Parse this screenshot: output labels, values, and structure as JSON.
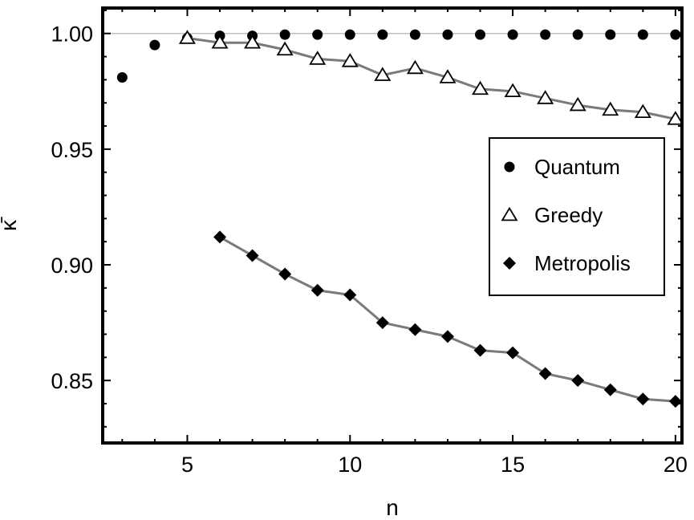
{
  "chart_data": {
    "type": "scatter",
    "xlabel": "n",
    "ylabel": "κ̄",
    "xlim": [
      2.4,
      20.2
    ],
    "ylim": [
      0.823,
      1.011
    ],
    "x_ticks": [
      5,
      10,
      15,
      20
    ],
    "y_ticks": [
      0.85,
      0.9,
      0.95,
      1.0
    ],
    "x_tick_labels": [
      "5",
      "10",
      "15",
      "20"
    ],
    "y_tick_labels": [
      "0.85",
      "0.90",
      "0.95",
      "1.00"
    ],
    "reference_line": 1.0,
    "grid": false,
    "legend_position": "right",
    "series": [
      {
        "name": "Quantum",
        "marker": "circle",
        "connected": false,
        "color": "#000000",
        "x": [
          3,
          4,
          5,
          6,
          7,
          8,
          9,
          10,
          11,
          12,
          13,
          14,
          15,
          16,
          17,
          18,
          19,
          20
        ],
        "y": [
          0.981,
          0.995,
          0.998,
          0.999,
          0.999,
          0.9995,
          0.9995,
          0.9995,
          0.9995,
          0.9995,
          0.9995,
          0.9995,
          0.9995,
          0.9995,
          0.9995,
          0.9995,
          0.9995,
          0.9995
        ]
      },
      {
        "name": "Greedy",
        "marker": "triangle",
        "connected": true,
        "color": "#000000",
        "x": [
          5,
          6,
          7,
          8,
          9,
          10,
          11,
          12,
          13,
          14,
          15,
          16,
          17,
          18,
          19,
          20
        ],
        "y": [
          0.998,
          0.996,
          0.996,
          0.993,
          0.989,
          0.988,
          0.982,
          0.985,
          0.981,
          0.976,
          0.975,
          0.972,
          0.969,
          0.967,
          0.966,
          0.963
        ]
      },
      {
        "name": "Metropolis",
        "marker": "diamond",
        "connected": true,
        "color": "#000000",
        "x": [
          6,
          7,
          8,
          9,
          10,
          11,
          12,
          13,
          14,
          15,
          16,
          17,
          18,
          19,
          20
        ],
        "y": [
          0.912,
          0.904,
          0.896,
          0.889,
          0.887,
          0.875,
          0.872,
          0.869,
          0.863,
          0.862,
          0.853,
          0.85,
          0.846,
          0.842,
          0.841
        ]
      }
    ]
  }
}
